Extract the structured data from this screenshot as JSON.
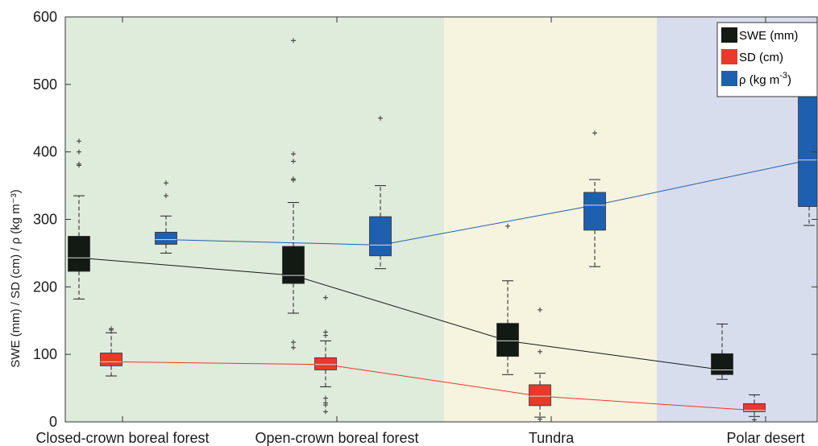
{
  "chart_data": {
    "type": "box",
    "ylabel": "SWE (mm) / SD (cm) / ρ (kg m⁻³)",
    "ylim": [
      0,
      600
    ],
    "yticks": [
      0,
      100,
      200,
      300,
      400,
      500,
      600
    ],
    "categories": [
      "Closed-crown boreal forest",
      "Open-crown boreal forest",
      "Tundra",
      "Polar desert"
    ],
    "background_colors": [
      "#dfebdb",
      "#dfebdb",
      "#f6f3df",
      "#d8ddee"
    ],
    "legend_position": "top-right",
    "series": [
      {
        "name": "SWE (mm)",
        "legend_label": "SWE (mm)",
        "color": "#121a13",
        "boxes": [
          {
            "category": "Closed-crown boreal forest",
            "whisker_low": 182,
            "q1": 223,
            "median": 243,
            "q3": 275,
            "whisker_high": 335,
            "outliers": [
              380,
              382,
              400,
              416
            ]
          },
          {
            "category": "Open-crown boreal forest",
            "whisker_low": 161,
            "q1": 205,
            "median": 217,
            "q3": 260,
            "whisker_high": 325,
            "outliers": [
              358,
              360,
              386,
              397,
              565,
              118,
              110
            ]
          },
          {
            "category": "Tundra",
            "whisker_low": 70,
            "q1": 97,
            "median": 120,
            "q3": 146,
            "whisker_high": 209,
            "outliers": [
              290
            ]
          },
          {
            "category": "Polar desert",
            "whisker_low": 63,
            "q1": 70,
            "median": 77,
            "q3": 101,
            "whisker_high": 145,
            "outliers": []
          }
        ]
      },
      {
        "name": "SD (cm)",
        "legend_label": "SD (cm)",
        "color": "#e8392b",
        "boxes": [
          {
            "category": "Closed-crown boreal forest",
            "whisker_low": 68,
            "q1": 83,
            "median": 89,
            "q3": 102,
            "whisker_high": 132,
            "outliers": [
              136,
              138
            ]
          },
          {
            "category": "Open-crown boreal forest",
            "whisker_low": 52,
            "q1": 77,
            "median": 85,
            "q3": 95,
            "whisker_high": 120,
            "outliers": [
              184,
              133,
              128,
              35,
              28,
              25,
              15
            ]
          },
          {
            "category": "Tundra",
            "whisker_low": 7,
            "q1": 24,
            "median": 38,
            "q3": 55,
            "whisker_high": 72,
            "outliers": [
              166,
              104,
              4
            ]
          },
          {
            "category": "Polar desert",
            "whisker_low": 8,
            "q1": 15,
            "median": 17,
            "q3": 27,
            "whisker_high": 40,
            "outliers": [
              3
            ]
          }
        ]
      },
      {
        "name": "ρ (kg m⁻³)",
        "legend_label": "ρ (kg m",
        "legend_exp": "-3",
        "legend_close": ")",
        "color": "#1f5fb0",
        "boxes": [
          {
            "category": "Closed-crown boreal forest",
            "whisker_low": 250,
            "q1": 263,
            "median": 270,
            "q3": 281,
            "whisker_high": 305,
            "outliers": [
              335,
              354
            ]
          },
          {
            "category": "Open-crown boreal forest",
            "whisker_low": 227,
            "q1": 246,
            "median": 262,
            "q3": 304,
            "whisker_high": 350,
            "outliers": [
              450
            ]
          },
          {
            "category": "Tundra",
            "whisker_low": 230,
            "q1": 284,
            "median": 321,
            "q3": 340,
            "whisker_high": 359,
            "outliers": [
              428
            ]
          },
          {
            "category": "Polar desert",
            "whisker_low": 291,
            "q1": 319,
            "median": 388,
            "q3": 500,
            "whisker_high": 500,
            "outliers": []
          }
        ]
      }
    ]
  }
}
